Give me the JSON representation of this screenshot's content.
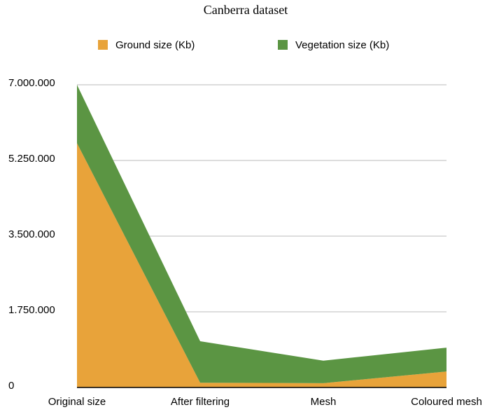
{
  "chart_data": {
    "type": "stacked-area",
    "title": "Canberra dataset",
    "categories": [
      "Original size",
      "After filtering",
      "Mesh",
      "Coloured mesh"
    ],
    "series": [
      {
        "name": "Ground size (Kb)",
        "color": "#e8a33a",
        "values": [
          5650000,
          110000,
          100000,
          370000
        ]
      },
      {
        "name": "Vegetation size (Kb)",
        "color": "#5b9543",
        "values": [
          1350000,
          960000,
          520000,
          550000
        ]
      }
    ],
    "ylim": [
      0,
      7000000
    ],
    "yticks": [
      0,
      {
        "value": 1750000,
        "label": "1.750.000"
      },
      {
        "value": 3500000,
        "label": "3.500.000"
      },
      {
        "value": 5250000,
        "label": "5.250.000"
      },
      {
        "value": 7000000,
        "label": "7.000.000"
      }
    ],
    "grid": true,
    "legend": "top"
  }
}
